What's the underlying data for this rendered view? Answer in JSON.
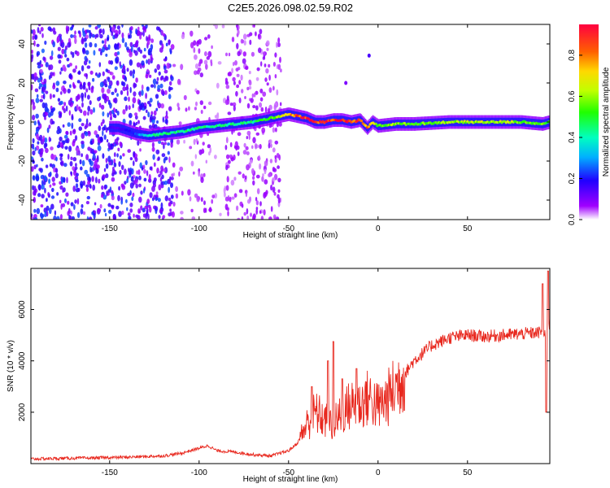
{
  "figure": {
    "title": "C2E5.2026.098.02.59.R02"
  },
  "chart_data": [
    {
      "type": "heatmap",
      "name": "spectrogram",
      "xlabel": "Height of straight line (km)",
      "ylabel": "Frequency (Hz)",
      "xlim": [
        -194,
        96
      ],
      "ylim": [
        -50,
        50
      ],
      "xticks": [
        -150,
        -100,
        -50,
        0,
        50
      ],
      "yticks": [
        -40,
        -20,
        0,
        20,
        40
      ],
      "colorbar": {
        "label": "Normalized spectral amplitude",
        "range": [
          0,
          0.95
        ],
        "ticks": [
          0,
          0.2,
          0.4,
          0.6,
          0.8
        ],
        "tick_labels": [
          "0.0",
          "0.2",
          "0.4",
          "0.6",
          "0.8"
        ]
      },
      "ridge": {
        "description": "dominant frequency ridge (Hz) vs height (km)",
        "x": [
          -145,
          -135,
          -128,
          -120,
          -110,
          -100,
          -90,
          -80,
          -70,
          -60,
          -55,
          -50,
          -45,
          -40,
          -35,
          -30,
          -25,
          -20,
          -15,
          -10,
          -6,
          -3,
          0,
          10,
          20,
          40,
          60,
          80,
          92,
          96
        ],
        "y": [
          -3,
          -6,
          -7,
          -6,
          -5,
          -3,
          -2,
          -1,
          0,
          2,
          3,
          4,
          3,
          2,
          0,
          0,
          1,
          1,
          0,
          1,
          -3,
          0,
          -2,
          -1,
          -1,
          0,
          0,
          0,
          -1,
          0
        ],
        "amplitude": [
          0.15,
          0.25,
          0.4,
          0.45,
          0.45,
          0.45,
          0.45,
          0.45,
          0.45,
          0.55,
          0.6,
          0.8,
          0.85,
          0.9,
          0.9,
          0.9,
          0.9,
          0.9,
          0.9,
          0.85,
          0.8,
          0.7,
          0.55,
          0.6,
          0.55,
          0.6,
          0.65,
          0.6,
          0.55,
          0.5
        ]
      },
      "annotations": [
        {
          "x": -5,
          "y": 34,
          "amplitude": 0.15,
          "label": "isolated point"
        },
        {
          "x": -18,
          "y": 20,
          "amplitude": 0.1,
          "label": "isolated point"
        }
      ]
    },
    {
      "type": "line",
      "name": "snr",
      "xlabel": "Height of straight line (km)",
      "ylabel": "SNR (10 * v/v)",
      "xlim": [
        -194,
        96
      ],
      "ylim": [
        0,
        7600
      ],
      "xticks": [
        -150,
        -100,
        -50,
        0,
        50
      ],
      "yticks": [
        2000,
        4000,
        6000
      ],
      "color": "#e8281e",
      "series": [
        {
          "name": "SNR",
          "x": [
            -194,
            -180,
            -160,
            -140,
            -120,
            -110,
            -100,
            -95,
            -90,
            -80,
            -70,
            -60,
            -55,
            -50,
            -45,
            -40,
            -35,
            -30,
            -25,
            -20,
            -15,
            -10,
            -5,
            0,
            5,
            10,
            15,
            20,
            25,
            30,
            40,
            50,
            60,
            70,
            80,
            90,
            92,
            94,
            96
          ],
          "y": [
            180,
            200,
            220,
            250,
            300,
            400,
            600,
            700,
            500,
            450,
            350,
            300,
            400,
            500,
            800,
            1500,
            2000,
            1700,
            1500,
            2000,
            2300,
            2300,
            2600,
            2200,
            2500,
            3000,
            3500,
            4000,
            4300,
            4600,
            4900,
            5000,
            4950,
            5000,
            5050,
            5100,
            5200,
            4800,
            5500
          ]
        }
      ],
      "spikes": [
        {
          "x": -37,
          "y": 3000
        },
        {
          "x": -28,
          "y": 4000
        },
        {
          "x": -25,
          "y": 4750
        },
        {
          "x": -20,
          "y": 3300
        },
        {
          "x": -12,
          "y": 3700
        },
        {
          "x": 92,
          "y": 7000
        },
        {
          "x": 94,
          "y": 2000
        },
        {
          "x": 95,
          "y": 7500
        }
      ]
    }
  ]
}
